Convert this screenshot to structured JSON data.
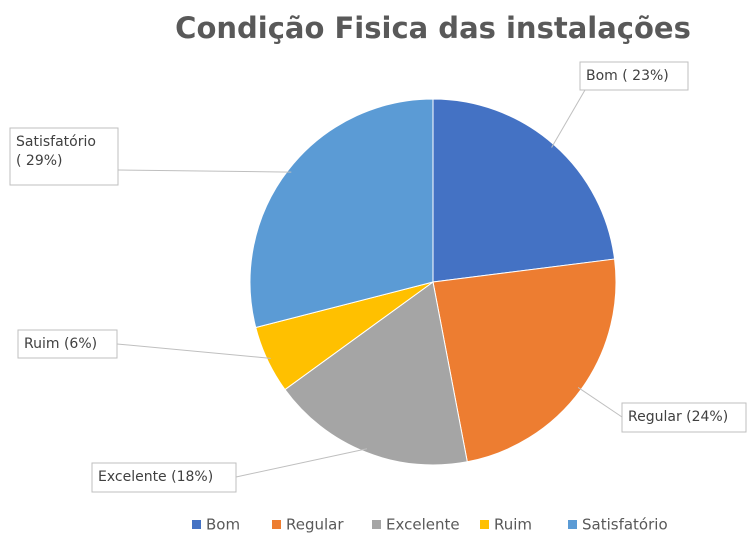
{
  "chart_data": {
    "type": "pie",
    "title": "Condição Fisica das instalações",
    "categories": [
      "Bom",
      "Regular",
      "Excelente",
      "Ruim",
      "Satisfatório"
    ],
    "values": [
      23,
      24,
      18,
      6,
      29
    ],
    "value_labels": [
      "Bom ( 23%)",
      "Regular (24%)",
      "Excelente (18%)",
      "Ruim (6%)",
      "Satisfatório\n( 29%)"
    ],
    "colors": [
      "#4472c4",
      "#ed7d31",
      "#a5a5a5",
      "#ffc000",
      "#5b9bd5"
    ],
    "legend": "bottom"
  }
}
